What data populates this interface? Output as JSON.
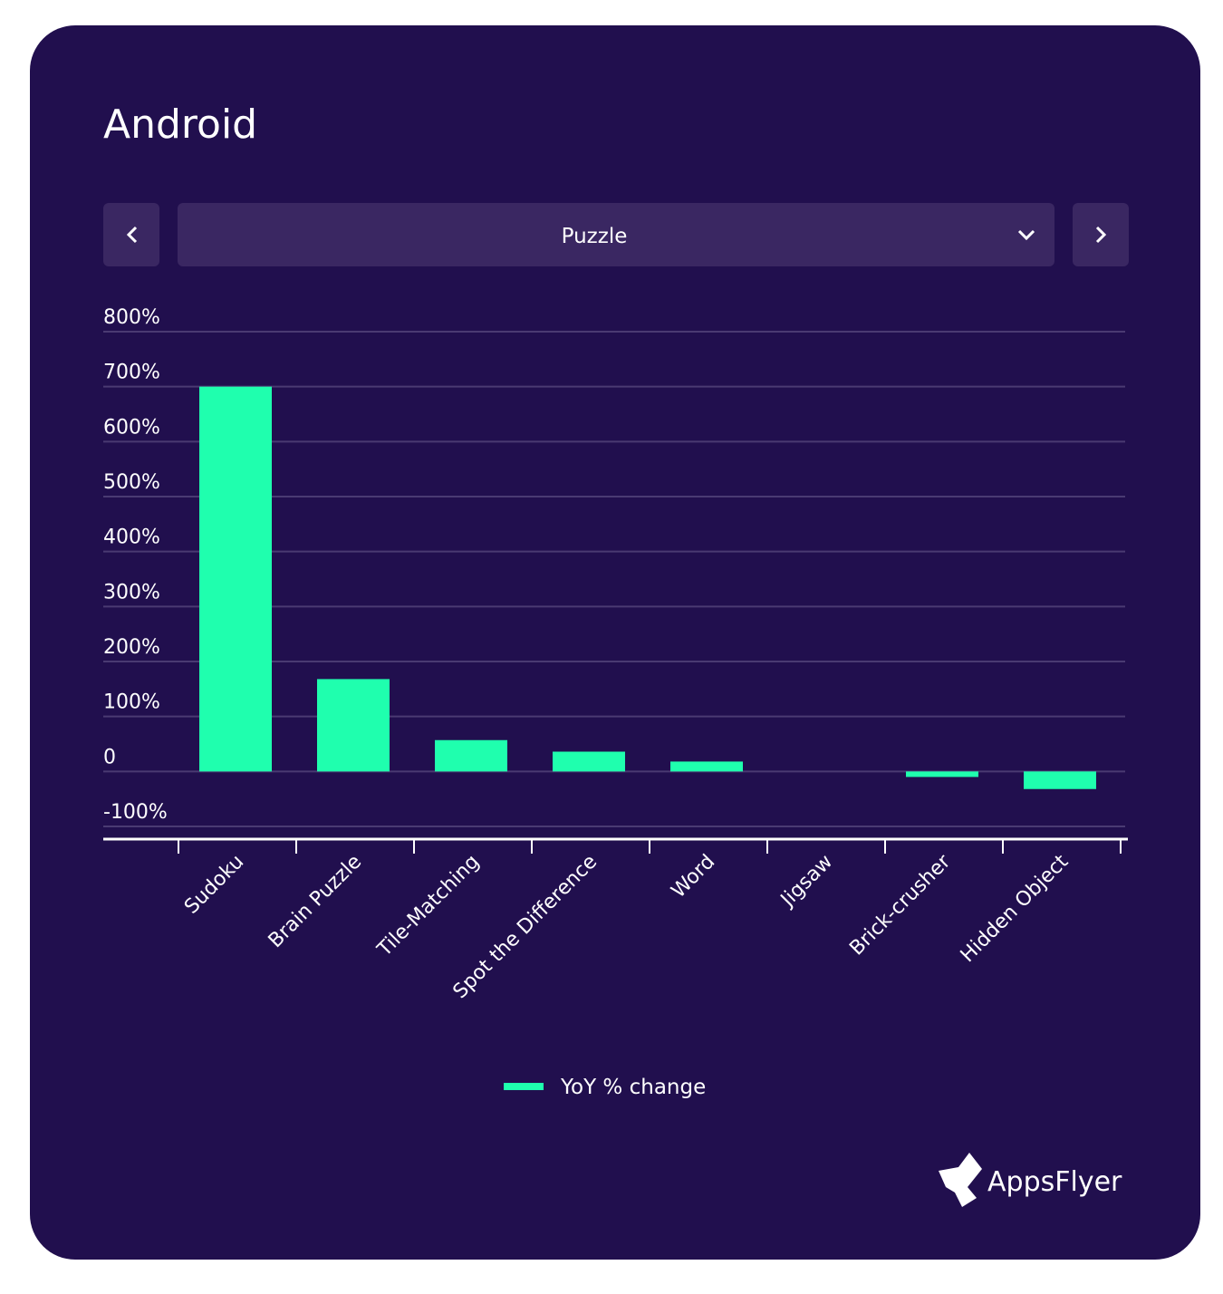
{
  "title": "Android",
  "selector": {
    "value": "Puzzle"
  },
  "brand": "AppsFlyer",
  "chart_data": {
    "type": "bar",
    "categories": [
      "Sudoku",
      "Brain Puzzle",
      "Tile-Matching",
      "Spot the Difference",
      "Word",
      "Jigsaw",
      "Brick-crusher",
      "Hidden Object"
    ],
    "series": [
      {
        "name": "YoY % change",
        "color": "#1fffae",
        "values": [
          700,
          168,
          57,
          36,
          18,
          0,
          -10,
          -32
        ]
      }
    ],
    "ylim": [
      -100,
      800
    ],
    "yticks": [
      {
        "value": -100,
        "label": "-100%"
      },
      0,
      {
        "value": 100,
        "label": "100%"
      },
      {
        "value": 200,
        "label": "200%"
      },
      {
        "value": 300,
        "label": "300%"
      },
      {
        "value": 400,
        "label": "400%"
      },
      {
        "value": 500,
        "label": "500%"
      },
      {
        "value": 600,
        "label": "600%"
      },
      {
        "value": 700,
        "label": "700%"
      },
      {
        "value": 800,
        "label": "800%"
      }
    ],
    "grid": true
  }
}
